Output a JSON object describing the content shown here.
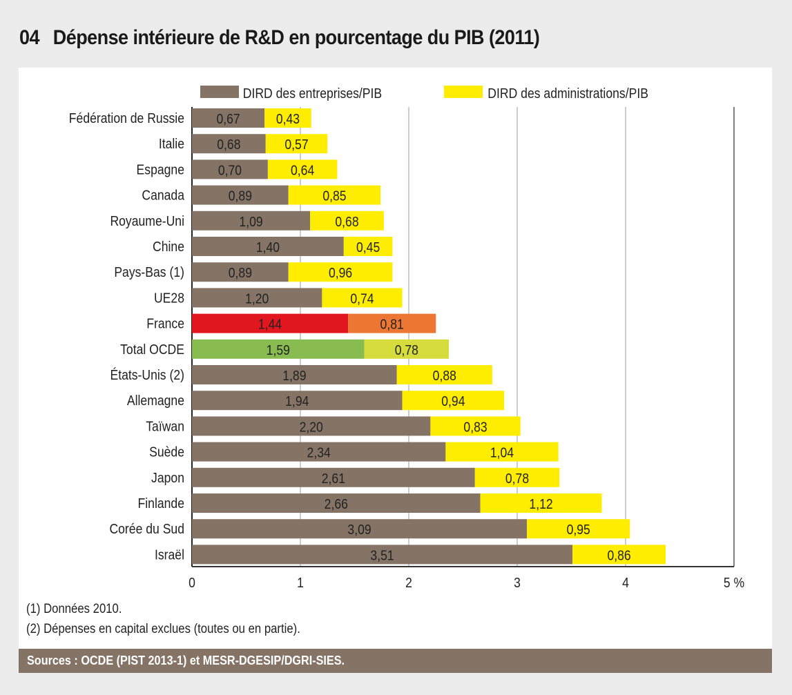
{
  "title_number": "04",
  "title": "Dépense intérieure de R&D en pourcentage du PIB (2011)",
  "chart_data": {
    "type": "bar",
    "orientation": "horizontal",
    "stacked": true,
    "title": "Dépense intérieure de R&D en pourcentage du PIB (2011)",
    "xlabel": "%",
    "xlim": [
      0,
      5
    ],
    "xticks": [
      "0",
      "1",
      "2",
      "3",
      "4",
      "5 %"
    ],
    "grid": true,
    "legend_position": "top",
    "categories": [
      "Fédération de Russie",
      "Italie",
      "Espagne",
      "Canada",
      "Royaume-Uni",
      "Chine",
      "Pays-Bas (1)",
      "UE28",
      "France",
      "Total OCDE",
      "États-Unis (2)",
      "Allemagne",
      "Taïwan",
      "Suède",
      "Japon",
      "Finlande",
      "Corée du Sud",
      "Israël"
    ],
    "series": [
      {
        "name": "DIRD des entreprises/PIB",
        "color": "#857465",
        "values": [
          0.67,
          0.68,
          0.7,
          0.89,
          1.09,
          1.4,
          0.89,
          1.2,
          1.44,
          1.59,
          1.89,
          1.94,
          2.2,
          2.34,
          2.61,
          2.66,
          3.09,
          3.51
        ],
        "labels": [
          "0,67",
          "0,68",
          "0,70",
          "0,89",
          "1,09",
          "1,40",
          "0,89",
          "1,20",
          "1,44",
          "1,59",
          "1,89",
          "1,94",
          "2,20",
          "2,34",
          "2,61",
          "2,66",
          "3,09",
          "3,51"
        ]
      },
      {
        "name": "DIRD des administrations/PIB",
        "color": "#ffed00",
        "values": [
          0.43,
          0.57,
          0.64,
          0.85,
          0.68,
          0.45,
          0.96,
          0.74,
          0.81,
          0.78,
          0.88,
          0.94,
          0.83,
          1.04,
          0.78,
          1.12,
          0.95,
          0.86
        ],
        "labels": [
          "0,43",
          "0,57",
          "0,64",
          "0,85",
          "0,68",
          "0,45",
          "0,96",
          "0,74",
          "0,81",
          "0,78",
          "0,88",
          "0,94",
          "0,83",
          "1,04",
          "0,78",
          "1,12",
          "0,95",
          "0,86"
        ]
      }
    ],
    "highlight_colors": {
      "France": [
        "#e2161f",
        "#ee7633"
      ],
      "Total OCDE": [
        "#88bc50",
        "#d6dc3c"
      ]
    }
  },
  "notes": [
    "(1) Données 2010.",
    "(2) Dépenses en capital exclues (toutes ou en partie)."
  ],
  "sources": "Sources : OCDE (PIST 2013-1) et MESR-DGESIP/DGRI-SIES."
}
